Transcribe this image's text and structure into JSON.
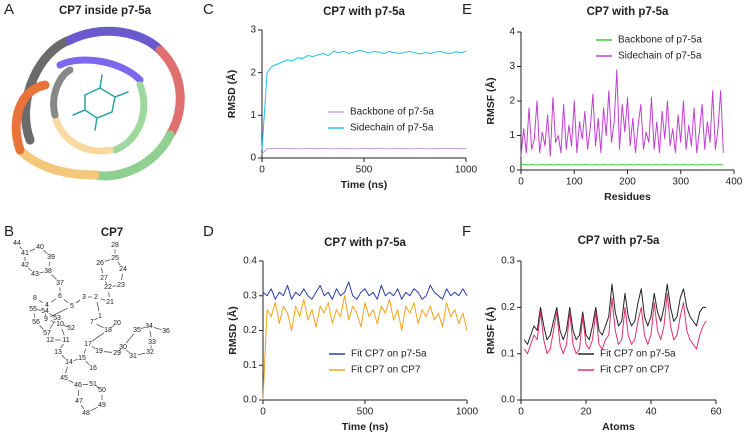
{
  "panel_letters": [
    "A",
    "B",
    "C",
    "D",
    "E",
    "F"
  ],
  "structure": {
    "title": "CP7 inside p7-5a"
  },
  "molecule": {
    "title": "CP7",
    "atoms": [
      {
        "label": "44",
        "color": "#d62728"
      },
      {
        "label": "41",
        "color": "#333333"
      },
      {
        "label": "40",
        "color": "#333333"
      },
      {
        "label": "39",
        "color": "#333333"
      },
      {
        "label": "42",
        "color": "#333333"
      },
      {
        "label": "43",
        "color": "#333333"
      },
      {
        "label": "38",
        "color": "#333333"
      },
      {
        "label": "37",
        "color": "#333333"
      },
      {
        "label": "28",
        "color": "#d62728"
      },
      {
        "label": "26",
        "color": "#333333"
      },
      {
        "label": "25",
        "color": "#333333"
      },
      {
        "label": "24",
        "color": "#333333"
      },
      {
        "label": "27",
        "color": "#333333"
      },
      {
        "label": "22",
        "color": "#333333"
      },
      {
        "label": "23",
        "color": "#333333"
      },
      {
        "label": "8",
        "color": "#d62728"
      },
      {
        "label": "4",
        "color": "#333333"
      },
      {
        "label": "6",
        "color": "#333333"
      },
      {
        "label": "5",
        "color": "#3344cc"
      },
      {
        "label": "3",
        "color": "#333333"
      },
      {
        "label": "2",
        "color": "#333333"
      },
      {
        "label": "21",
        "color": "#333333"
      },
      {
        "label": "1",
        "color": "#333333"
      },
      {
        "label": "55",
        "color": "#333333"
      },
      {
        "label": "54",
        "color": "#3344cc"
      },
      {
        "label": "56",
        "color": "#3344cc"
      },
      {
        "label": "9",
        "color": "#3344cc"
      },
      {
        "label": "53",
        "color": "#333333"
      },
      {
        "label": "57",
        "color": "#333333"
      },
      {
        "label": "52",
        "color": "#333333"
      },
      {
        "label": "10",
        "color": "#333333"
      },
      {
        "label": "7",
        "color": "#3344cc"
      },
      {
        "label": "20",
        "color": "#d62728"
      },
      {
        "label": "18",
        "color": "#333333"
      },
      {
        "label": "35",
        "color": "#333333"
      },
      {
        "label": "34",
        "color": "#333333"
      },
      {
        "label": "36",
        "color": "#d62728"
      },
      {
        "label": "12",
        "color": "#d62728"
      },
      {
        "label": "11",
        "color": "#333333"
      },
      {
        "label": "13",
        "color": "#3344cc"
      },
      {
        "label": "17",
        "color": "#3344cc"
      },
      {
        "label": "19",
        "color": "#333333"
      },
      {
        "label": "30",
        "color": "#333333"
      },
      {
        "label": "33",
        "color": "#333333"
      },
      {
        "label": "29",
        "color": "#333333"
      },
      {
        "label": "31",
        "color": "#333333"
      },
      {
        "label": "32",
        "color": "#333333"
      },
      {
        "label": "14",
        "color": "#333333"
      },
      {
        "label": "15",
        "color": "#333333"
      },
      {
        "label": "16",
        "color": "#d62728"
      },
      {
        "label": "45",
        "color": "#333333"
      },
      {
        "label": "46",
        "color": "#333333"
      },
      {
        "label": "51",
        "color": "#333333"
      },
      {
        "label": "50",
        "color": "#333333"
      },
      {
        "label": "47",
        "color": "#333333"
      },
      {
        "label": "49",
        "color": "#333333"
      },
      {
        "label": "48",
        "color": "#333333"
      }
    ]
  },
  "chart_data": [
    {
      "type": "line",
      "title": "CP7 with p7-5a",
      "x_label": "Time (ns)",
      "y_label": "RMSD (Å)",
      "legend": "lower right",
      "xlim": [
        0,
        1000
      ],
      "xticks": [
        0,
        500,
        1000
      ],
      "ylim": [
        0,
        3
      ],
      "yticks": [
        0,
        1,
        2,
        3
      ],
      "x": [
        0,
        25,
        50,
        75,
        100,
        125,
        150,
        175,
        200,
        225,
        250,
        275,
        300,
        325,
        350,
        375,
        400,
        425,
        450,
        475,
        500,
        525,
        550,
        575,
        600,
        625,
        650,
        675,
        700,
        725,
        750,
        775,
        800,
        825,
        850,
        875,
        900,
        925,
        950,
        975,
        1000
      ],
      "series": [
        {
          "name": "Backbone of p7-5a",
          "color": "#c9a0dc",
          "values": [
            0.1,
            0.22,
            0.23,
            0.22,
            0.22,
            0.23,
            0.22,
            0.22,
            0.22,
            0.23,
            0.22,
            0.22,
            0.23,
            0.22,
            0.22,
            0.22,
            0.23,
            0.22,
            0.22,
            0.22,
            0.23,
            0.22,
            0.22,
            0.23,
            0.22,
            0.22,
            0.22,
            0.23,
            0.22,
            0.22,
            0.22,
            0.23,
            0.22,
            0.22,
            0.22,
            0.23,
            0.22,
            0.22,
            0.23,
            0.22,
            0.22
          ]
        },
        {
          "name": "Sidechain of p7-5a",
          "color": "#22c3e0",
          "values": [
            0.2,
            2.0,
            2.15,
            2.2,
            2.25,
            2.3,
            2.28,
            2.35,
            2.33,
            2.4,
            2.38,
            2.42,
            2.45,
            2.4,
            2.5,
            2.47,
            2.5,
            2.45,
            2.48,
            2.52,
            2.5,
            2.46,
            2.5,
            2.48,
            2.45,
            2.5,
            2.47,
            2.45,
            2.48,
            2.5,
            2.46,
            2.44,
            2.47,
            2.45,
            2.48,
            2.5,
            2.46,
            2.45,
            2.49,
            2.47,
            2.5
          ]
        }
      ]
    },
    {
      "type": "line",
      "title": "CP7 with p7-5a",
      "x_label": "Residues",
      "y_label": "RMSF (Å)",
      "legend": "upper right",
      "xlim": [
        0,
        400
      ],
      "xticks": [
        0,
        100,
        200,
        300,
        400
      ],
      "ylim": [
        0,
        4
      ],
      "yticks": [
        0,
        1,
        2,
        3,
        4
      ],
      "x": [
        0,
        5,
        10,
        15,
        20,
        25,
        30,
        35,
        40,
        45,
        50,
        55,
        60,
        65,
        70,
        75,
        80,
        85,
        90,
        95,
        100,
        105,
        110,
        115,
        120,
        125,
        130,
        135,
        140,
        145,
        150,
        155,
        160,
        165,
        170,
        175,
        180,
        185,
        190,
        195,
        200,
        205,
        210,
        215,
        220,
        225,
        230,
        235,
        240,
        245,
        250,
        255,
        260,
        265,
        270,
        275,
        280,
        285,
        290,
        295,
        300,
        305,
        310,
        315,
        320,
        325,
        330,
        335,
        340,
        345,
        350,
        355,
        360,
        365,
        370,
        375,
        380
      ],
      "series": [
        {
          "name": "Backbone of p7-5a",
          "color": "#3ccc3c",
          "values": [
            0.15,
            0.16,
            0.15,
            0.15,
            0.16,
            0.15,
            0.15,
            0.15,
            0.16,
            0.15,
            0.15,
            0.16,
            0.15,
            0.15,
            0.16,
            0.15,
            0.15,
            0.15,
            0.16,
            0.15,
            0.15,
            0.16,
            0.15,
            0.15,
            0.16,
            0.15,
            0.15,
            0.15,
            0.16,
            0.15,
            0.15,
            0.16,
            0.15,
            0.15,
            0.16,
            0.15,
            0.15,
            0.15,
            0.16,
            0.15,
            0.15,
            0.16,
            0.15,
            0.15,
            0.16,
            0.15,
            0.15,
            0.15,
            0.16,
            0.15,
            0.15,
            0.16,
            0.15,
            0.15,
            0.16,
            0.15,
            0.15,
            0.15,
            0.16,
            0.15,
            0.15,
            0.16,
            0.15,
            0.15,
            0.16,
            0.15,
            0.15,
            0.15,
            0.16,
            0.15,
            0.15,
            0.16,
            0.15,
            0.15,
            0.16,
            0.15,
            0.15
          ]
        },
        {
          "name": "Sidechain of p7-5a",
          "color": "#c040d0",
          "values": [
            0.4,
            1.2,
            0.5,
            1.8,
            0.6,
            0.9,
            2.0,
            0.5,
            1.1,
            0.7,
            1.6,
            0.4,
            2.1,
            0.8,
            1.0,
            0.5,
            1.9,
            0.6,
            1.3,
            0.7,
            2.0,
            0.5,
            1.4,
            0.9,
            1.7,
            0.6,
            1.2,
            2.2,
            0.7,
            1.5,
            0.5,
            1.8,
            1.0,
            2.3,
            0.8,
            1.4,
            2.9,
            0.6,
            1.9,
            1.1,
            2.1,
            0.7,
            1.5,
            0.5,
            1.3,
            1.9,
            0.6,
            1.1,
            0.8,
            2.1,
            0.6,
            1.4,
            0.5,
            1.7,
            0.9,
            2.0,
            0.7,
            1.2,
            0.5,
            1.6,
            0.8,
            2.0,
            0.6,
            1.3,
            0.7,
            1.8,
            0.5,
            1.1,
            1.9,
            0.6,
            1.4,
            0.8,
            2.3,
            0.6,
            1.2,
            2.3,
            0.5
          ]
        }
      ]
    },
    {
      "type": "line",
      "title": "CP7 with p7-5a",
      "x_label": "Time (ns)",
      "y_label": "RMSD (Å)",
      "legend": "lower right",
      "xlim": [
        0,
        1000
      ],
      "xticks": [
        0,
        500,
        1000
      ],
      "ylim": [
        0,
        0.4
      ],
      "yticks": [
        {
          "value": 0,
          "label": "0.0"
        },
        {
          "value": 0.1,
          "label": "0.1"
        },
        {
          "value": 0.2,
          "label": "0.2"
        },
        {
          "value": 0.3,
          "label": "0.3"
        },
        {
          "value": 0.4,
          "label": "0.4"
        }
      ],
      "x": [
        0,
        20,
        40,
        60,
        80,
        100,
        120,
        140,
        160,
        180,
        200,
        220,
        240,
        260,
        280,
        300,
        320,
        340,
        360,
        380,
        400,
        420,
        440,
        460,
        480,
        500,
        520,
        540,
        560,
        580,
        600,
        620,
        640,
        660,
        680,
        700,
        720,
        740,
        760,
        780,
        800,
        820,
        840,
        860,
        880,
        900,
        920,
        940,
        960,
        980,
        1000
      ],
      "series": [
        {
          "name": "Fit CP7 on p7-5a",
          "color": "#2a3ba8",
          "values": [
            0.31,
            0.3,
            0.32,
            0.29,
            0.31,
            0.3,
            0.33,
            0.29,
            0.31,
            0.3,
            0.32,
            0.3,
            0.29,
            0.31,
            0.33,
            0.3,
            0.31,
            0.29,
            0.32,
            0.3,
            0.31,
            0.34,
            0.3,
            0.29,
            0.31,
            0.32,
            0.3,
            0.31,
            0.29,
            0.33,
            0.3,
            0.31,
            0.3,
            0.32,
            0.29,
            0.31,
            0.3,
            0.32,
            0.31,
            0.29,
            0.3,
            0.33,
            0.31,
            0.3,
            0.29,
            0.32,
            0.3,
            0.31,
            0.3,
            0.32,
            0.3
          ]
        },
        {
          "name": "Fit CP7 on CP7",
          "color": "#f5a31a",
          "values": [
            0,
            0.26,
            0.24,
            0.28,
            0.22,
            0.27,
            0.25,
            0.2,
            0.27,
            0.24,
            0.29,
            0.23,
            0.26,
            0.21,
            0.27,
            0.25,
            0.28,
            0.22,
            0.26,
            0.24,
            0.3,
            0.23,
            0.27,
            0.25,
            0.21,
            0.28,
            0.24,
            0.26,
            0.22,
            0.27,
            0.25,
            0.29,
            0.23,
            0.26,
            0.2,
            0.27,
            0.25,
            0.28,
            0.22,
            0.26,
            0.24,
            0.27,
            0.23,
            0.25,
            0.21,
            0.28,
            0.24,
            0.26,
            0.22,
            0.25,
            0.2
          ]
        }
      ]
    },
    {
      "type": "line",
      "title": "CP7 with p7-5a",
      "x_label": "Atoms",
      "y_label": "RMSF (Å)",
      "legend": "lower right",
      "xlim": [
        0,
        60
      ],
      "xticks": [
        0,
        20,
        40,
        60
      ],
      "ylim": [
        0,
        0.3
      ],
      "yticks": [
        {
          "value": 0,
          "label": "0.0"
        },
        {
          "value": 0.1,
          "label": "0.1"
        },
        {
          "value": 0.2,
          "label": "0.2"
        },
        {
          "value": 0.3,
          "label": "0.3"
        }
      ],
      "x": [
        1,
        2,
        3,
        4,
        5,
        6,
        7,
        8,
        9,
        10,
        11,
        12,
        13,
        14,
        15,
        16,
        17,
        18,
        19,
        20,
        21,
        22,
        23,
        24,
        25,
        26,
        27,
        28,
        29,
        30,
        31,
        32,
        33,
        34,
        35,
        36,
        37,
        38,
        39,
        40,
        41,
        42,
        43,
        44,
        45,
        46,
        47,
        48,
        49,
        50,
        51,
        52,
        53,
        54,
        55,
        56,
        57
      ],
      "series": [
        {
          "name": "Fit CP7 on p7-5a",
          "color": "#222222",
          "values": [
            0.13,
            0.12,
            0.14,
            0.16,
            0.15,
            0.2,
            0.16,
            0.13,
            0.14,
            0.17,
            0.2,
            0.15,
            0.13,
            0.15,
            0.2,
            0.15,
            0.13,
            0.14,
            0.19,
            0.14,
            0.13,
            0.16,
            0.2,
            0.15,
            0.14,
            0.16,
            0.18,
            0.25,
            0.19,
            0.16,
            0.17,
            0.23,
            0.18,
            0.16,
            0.17,
            0.21,
            0.24,
            0.18,
            0.16,
            0.18,
            0.23,
            0.19,
            0.17,
            0.2,
            0.25,
            0.2,
            0.17,
            0.18,
            0.22,
            0.24,
            0.2,
            0.18,
            0.17,
            0.16,
            0.19,
            0.2,
            0.2
          ]
        },
        {
          "name": "Fit CP7 on CP7",
          "color": "#e0306a",
          "values": [
            0.11,
            0.1,
            0.12,
            0.14,
            0.13,
            0.19,
            0.13,
            0.1,
            0.11,
            0.15,
            0.19,
            0.12,
            0.1,
            0.12,
            0.19,
            0.12,
            0.1,
            0.11,
            0.18,
            0.12,
            0.11,
            0.13,
            0.19,
            0.12,
            0.11,
            0.13,
            0.14,
            0.22,
            0.15,
            0.12,
            0.13,
            0.2,
            0.14,
            0.12,
            0.13,
            0.17,
            0.2,
            0.14,
            0.12,
            0.14,
            0.21,
            0.15,
            0.13,
            0.16,
            0.23,
            0.16,
            0.13,
            0.14,
            0.18,
            0.21,
            0.15,
            0.13,
            0.12,
            0.11,
            0.14,
            0.16,
            0.17
          ]
        }
      ]
    }
  ]
}
